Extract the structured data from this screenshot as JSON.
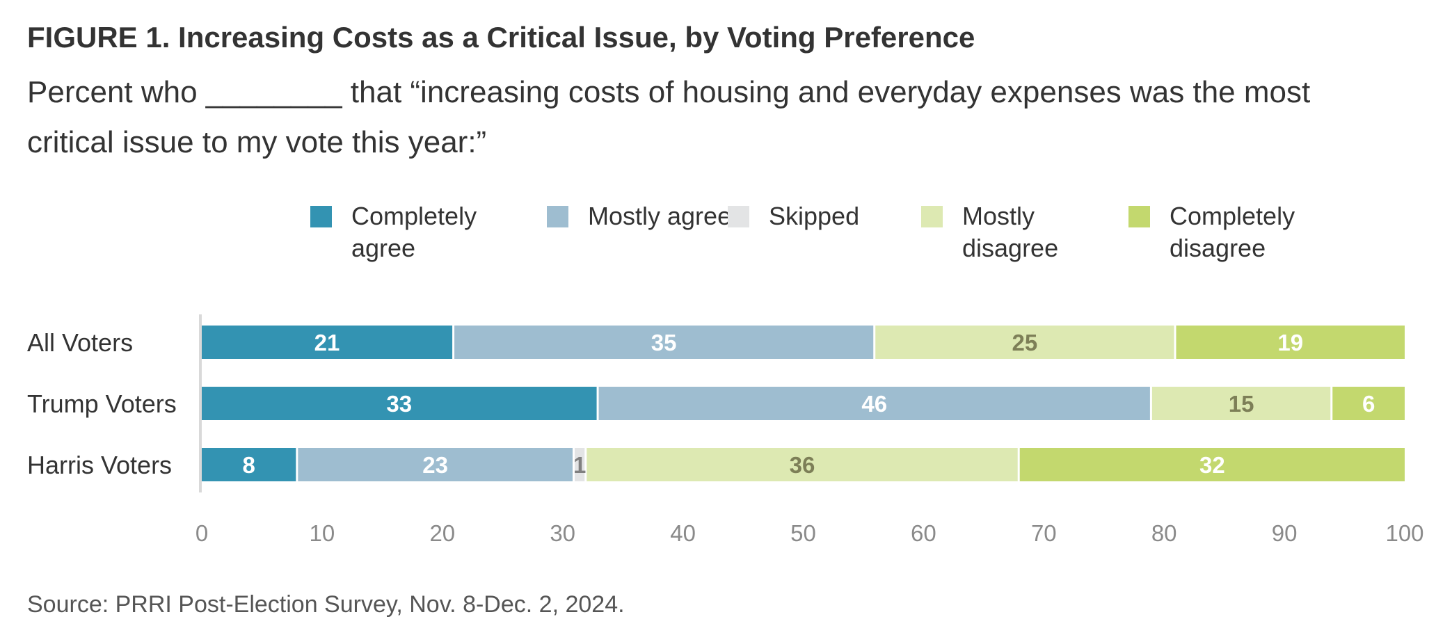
{
  "title": "FIGURE 1. Increasing Costs as a Critical Issue, by Voting Preference",
  "subtitle": "Percent who ________ that “increasing costs of housing and everyday expenses was the most critical issue to my vote this year:”",
  "source": "Source: PRRI Post-Election Survey, Nov. 8-Dec. 2, 2024.",
  "legend": [
    {
      "label": "Completely agree",
      "color": "#3393b2"
    },
    {
      "label": "Mostly agree",
      "color": "#9ebdd0"
    },
    {
      "label": "Skipped",
      "color": "#e3e4e5"
    },
    {
      "label": "Mostly disagree",
      "color": "#dde9b2"
    },
    {
      "label": "Completely disagree",
      "color": "#c3d86e"
    }
  ],
  "chart_data": {
    "type": "bar",
    "orientation": "horizontal",
    "stacked": true,
    "categories": [
      "All Voters",
      "Trump Voters",
      "Harris Voters"
    ],
    "series": [
      {
        "name": "Completely agree",
        "color": "#3393b2",
        "label_color": "#ffffff",
        "values": [
          21,
          33,
          8
        ]
      },
      {
        "name": "Mostly agree",
        "color": "#9ebdd0",
        "label_color": "#ffffff",
        "values": [
          35,
          46,
          23
        ]
      },
      {
        "name": "Skipped",
        "color": "#e3e4e5",
        "label_color": "#808080",
        "values": [
          0,
          0,
          1
        ]
      },
      {
        "name": "Mostly disagree",
        "color": "#dde9b2",
        "label_color": "#7d7f57",
        "values": [
          25,
          15,
          36
        ]
      },
      {
        "name": "Completely disagree",
        "color": "#c3d86e",
        "label_color": "#ffffff",
        "values": [
          19,
          6,
          32
        ]
      }
    ],
    "xlim": [
      0,
      100
    ],
    "xticks": [
      0,
      10,
      20,
      30,
      40,
      50,
      60,
      70,
      80,
      90,
      100
    ],
    "grid": false,
    "legend_position": "top"
  }
}
